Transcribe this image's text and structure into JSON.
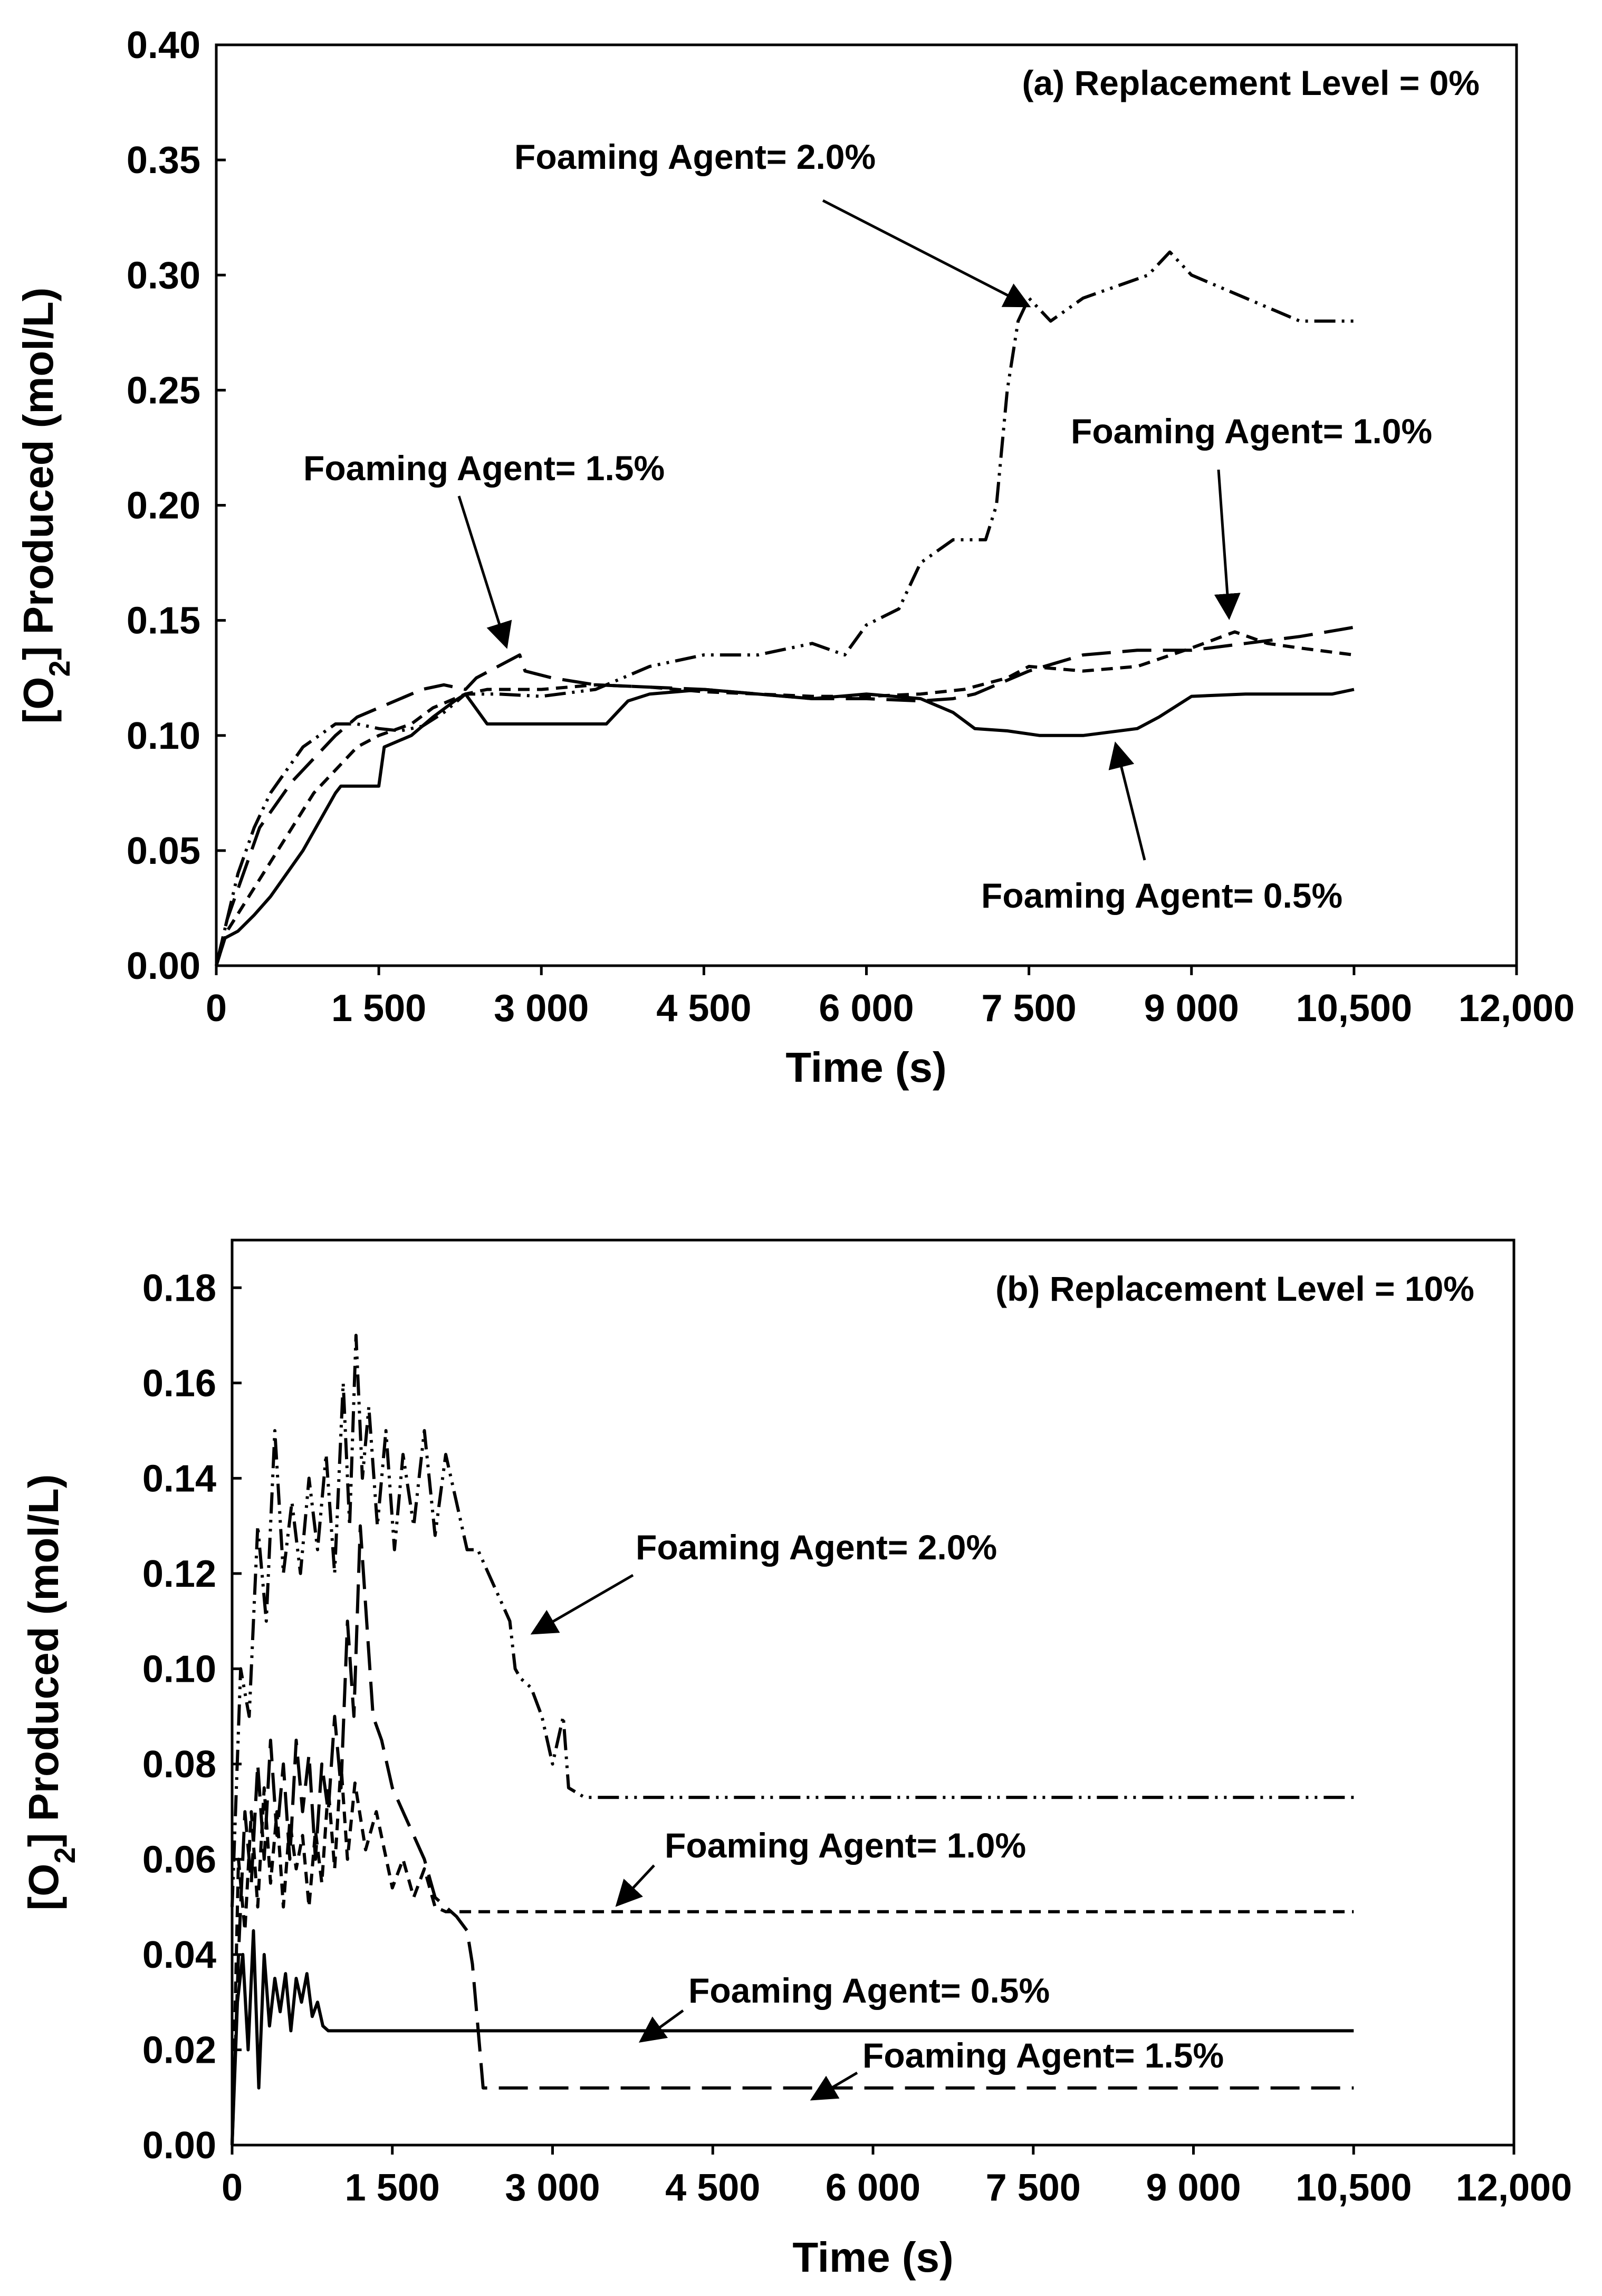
{
  "chart_data": [
    {
      "type": "line",
      "title": "(a) Replacement Level = 0%",
      "xlabel": "Time (s)",
      "ylabel_prefix": "[O",
      "ylabel_sub": "2",
      "ylabel_suffix": "] Produced (mol/L)",
      "xlim": [
        0,
        12000
      ],
      "ylim": [
        0,
        0.4
      ],
      "xticks": [
        0,
        1500,
        3000,
        4500,
        6000,
        7500,
        9000,
        10500,
        12000
      ],
      "xtick_labels": [
        "0",
        "1 500",
        "3 000",
        "4 500",
        "6 000",
        "7 500",
        "9 000",
        "10,500",
        "12,000"
      ],
      "yticks": [
        0,
        0.05,
        0.1,
        0.15,
        0.2,
        0.25,
        0.3,
        0.35,
        0.4
      ],
      "ytick_labels": [
        "0.00",
        "0.05",
        "0.10",
        "0.15",
        "0.20",
        "0.25",
        "0.30",
        "0.35",
        "0.40"
      ],
      "series": [
        {
          "name": "Foaming Agent= 0.5%",
          "dash": "solid",
          "x": [
            0,
            80,
            200,
            350,
            500,
            650,
            800,
            1100,
            1150,
            1500,
            1550,
            1800,
            2000,
            2200,
            2300,
            2500,
            3000,
            3200,
            3600,
            3700,
            3800,
            4000,
            4500,
            5000,
            5500,
            6000,
            6500,
            6800,
            7000,
            7300,
            7600,
            8000,
            8500,
            8700,
            9000,
            9500,
            10000,
            10300,
            10500
          ],
          "y": [
            0,
            0.012,
            0.015,
            0.022,
            0.03,
            0.04,
            0.05,
            0.075,
            0.078,
            0.078,
            0.095,
            0.1,
            0.108,
            0.115,
            0.118,
            0.105,
            0.105,
            0.105,
            0.105,
            0.11,
            0.115,
            0.118,
            0.12,
            0.118,
            0.116,
            0.118,
            0.116,
            0.11,
            0.103,
            0.102,
            0.1,
            0.1,
            0.103,
            0.108,
            0.117,
            0.118,
            0.118,
            0.118,
            0.12
          ]
        },
        {
          "name": "Foaming Agent= 1.0%",
          "dash": "short-dash",
          "x": [
            0,
            100,
            300,
            500,
            700,
            900,
            1100,
            1300,
            1500,
            1800,
            2000,
            2300,
            2500,
            3000,
            3500,
            4000,
            4500,
            5000,
            5500,
            6000,
            6500,
            6900,
            7300,
            7500,
            8000,
            8500,
            9000,
            9400,
            9700,
            10000,
            10500
          ],
          "y": [
            0,
            0.015,
            0.03,
            0.045,
            0.06,
            0.075,
            0.085,
            0.095,
            0.1,
            0.105,
            0.112,
            0.118,
            0.12,
            0.12,
            0.122,
            0.121,
            0.119,
            0.118,
            0.117,
            0.117,
            0.118,
            0.12,
            0.125,
            0.13,
            0.128,
            0.13,
            0.138,
            0.145,
            0.14,
            0.138,
            0.135
          ]
        },
        {
          "name": "Foaming Agent= 1.5%",
          "dash": "long-dash",
          "x": [
            0,
            100,
            250,
            400,
            550,
            700,
            900,
            1100,
            1300,
            1500,
            1700,
            1900,
            2100,
            2300,
            2400,
            2600,
            2800,
            2850,
            3100,
            3500,
            4000,
            4500,
            5000,
            5500,
            6000,
            6500,
            6800,
            7000,
            7500,
            8000,
            8500,
            9000,
            9500,
            10000,
            10500
          ],
          "y": [
            0,
            0.02,
            0.04,
            0.06,
            0.07,
            0.08,
            0.09,
            0.1,
            0.108,
            0.112,
            0.116,
            0.12,
            0.122,
            0.12,
            0.125,
            0.13,
            0.135,
            0.128,
            0.125,
            0.122,
            0.121,
            0.12,
            0.118,
            0.116,
            0.116,
            0.115,
            0.116,
            0.118,
            0.128,
            0.135,
            0.137,
            0.137,
            0.14,
            0.143,
            0.147
          ]
        },
        {
          "name": "Foaming Agent= 2.0%",
          "dash": "dash-dot-dot",
          "x": [
            0,
            100,
            200,
            350,
            500,
            650,
            800,
            950,
            1100,
            1300,
            1500,
            1700,
            1900,
            2100,
            2300,
            2600,
            3000,
            3500,
            4000,
            4500,
            5000,
            5500,
            5800,
            6000,
            6300,
            6500,
            6800,
            7100,
            7200,
            7300,
            7400,
            7500,
            7700,
            8000,
            8300,
            8600,
            8800,
            9000,
            9500,
            10000,
            10500
          ],
          "y": [
            0,
            0.02,
            0.04,
            0.06,
            0.075,
            0.085,
            0.095,
            0.1,
            0.105,
            0.105,
            0.103,
            0.102,
            0.104,
            0.11,
            0.118,
            0.118,
            0.117,
            0.12,
            0.13,
            0.135,
            0.135,
            0.14,
            0.135,
            0.148,
            0.155,
            0.175,
            0.185,
            0.185,
            0.2,
            0.25,
            0.28,
            0.29,
            0.28,
            0.29,
            0.295,
            0.3,
            0.31,
            0.3,
            0.29,
            0.28,
            0.28
          ]
        }
      ],
      "annotations": [
        "Foaming Agent= 2.0%",
        "Foaming Agent= 1.5%",
        "Foaming Agent= 1.0%",
        "Foaming Agent= 0.5%"
      ]
    },
    {
      "type": "line",
      "title": "(b) Replacement Level = 10%",
      "xlabel": "Time (s)",
      "ylabel_prefix": "[O",
      "ylabel_sub": "2",
      "ylabel_suffix": "] Produced (mol/L)",
      "xlim": [
        0,
        12000
      ],
      "ylim": [
        0,
        0.19
      ],
      "xticks": [
        0,
        1500,
        3000,
        4500,
        6000,
        7500,
        9000,
        10500,
        12000
      ],
      "xtick_labels": [
        "0",
        "1 500",
        "3 000",
        "4 500",
        "6 000",
        "7 500",
        "9 000",
        "10,500",
        "12,000"
      ],
      "yticks": [
        0,
        0.02,
        0.04,
        0.06,
        0.08,
        0.1,
        0.12,
        0.14,
        0.16,
        0.18
      ],
      "ytick_labels": [
        "0.00",
        "0.02",
        "0.04",
        "0.06",
        "0.08",
        "0.10",
        "0.12",
        "0.14",
        "0.16",
        "0.18"
      ],
      "series": [
        {
          "name": "Foaming Agent= 0.5%",
          "dash": "solid",
          "x": [
            0,
            50,
            100,
            150,
            200,
            250,
            300,
            350,
            400,
            450,
            500,
            550,
            600,
            650,
            700,
            750,
            800,
            850,
            900,
            1000,
            2000,
            4000,
            6000,
            8000,
            10500
          ],
          "y": [
            0,
            0.03,
            0.04,
            0.02,
            0.045,
            0.012,
            0.04,
            0.025,
            0.035,
            0.028,
            0.036,
            0.024,
            0.035,
            0.03,
            0.036,
            0.027,
            0.03,
            0.025,
            0.024,
            0.024,
            0.024,
            0.024,
            0.024,
            0.024,
            0.024
          ]
        },
        {
          "name": "Foaming Agent= 1.0%",
          "dash": "short-dash",
          "x": [
            0,
            60,
            120,
            180,
            240,
            300,
            360,
            420,
            480,
            540,
            600,
            660,
            720,
            780,
            840,
            900,
            960,
            1020,
            1080,
            1150,
            1250,
            1350,
            1500,
            1600,
            1700,
            1800,
            1900,
            2000,
            2200,
            2500,
            3000,
            4000,
            6000,
            8000,
            10500
          ],
          "y": [
            0,
            0.06,
            0.045,
            0.07,
            0.05,
            0.075,
            0.055,
            0.07,
            0.05,
            0.068,
            0.058,
            0.065,
            0.05,
            0.066,
            0.055,
            0.075,
            0.058,
            0.08,
            0.06,
            0.076,
            0.062,
            0.07,
            0.054,
            0.06,
            0.052,
            0.058,
            0.05,
            0.049,
            0.049,
            0.049,
            0.049,
            0.049,
            0.049,
            0.049,
            0.049
          ]
        },
        {
          "name": "Foaming Agent= 1.5%",
          "dash": "long-dash",
          "x": [
            0,
            60,
            120,
            180,
            240,
            300,
            360,
            420,
            480,
            540,
            600,
            660,
            720,
            780,
            840,
            900,
            960,
            1020,
            1080,
            1140,
            1200,
            1260,
            1320,
            1400,
            1500,
            1600,
            1700,
            1800,
            1900,
            2000,
            2100,
            2200,
            2250,
            2300,
            2350,
            2500,
            3000,
            4000,
            6000,
            8000,
            10500
          ],
          "y": [
            0,
            0.04,
            0.07,
            0.055,
            0.08,
            0.06,
            0.085,
            0.065,
            0.08,
            0.06,
            0.085,
            0.07,
            0.082,
            0.06,
            0.08,
            0.07,
            0.09,
            0.075,
            0.11,
            0.09,
            0.13,
            0.11,
            0.09,
            0.085,
            0.075,
            0.07,
            0.065,
            0.06,
            0.052,
            0.05,
            0.048,
            0.045,
            0.038,
            0.025,
            0.012,
            0.012,
            0.012,
            0.012,
            0.012,
            0.012,
            0.012
          ]
        },
        {
          "name": "Foaming Agent= 2.0%",
          "dash": "dash-dot-dot",
          "x": [
            0,
            80,
            160,
            240,
            320,
            400,
            480,
            560,
            640,
            720,
            800,
            880,
            960,
            1040,
            1100,
            1160,
            1220,
            1280,
            1360,
            1440,
            1520,
            1600,
            1700,
            1800,
            1900,
            2000,
            2100,
            2200,
            2300,
            2400,
            2500,
            2600,
            2650,
            2700,
            2800,
            2900,
            3000,
            3100,
            3150,
            3300,
            4000,
            6000,
            8000,
            10500
          ],
          "y": [
            0.05,
            0.1,
            0.09,
            0.13,
            0.11,
            0.15,
            0.12,
            0.135,
            0.12,
            0.14,
            0.125,
            0.145,
            0.12,
            0.16,
            0.13,
            0.17,
            0.14,
            0.155,
            0.13,
            0.15,
            0.125,
            0.145,
            0.13,
            0.15,
            0.128,
            0.145,
            0.135,
            0.125,
            0.125,
            0.12,
            0.115,
            0.11,
            0.1,
            0.098,
            0.096,
            0.09,
            0.08,
            0.09,
            0.075,
            0.073,
            0.073,
            0.073,
            0.073,
            0.073
          ]
        }
      ],
      "annotations": [
        "Foaming Agent= 2.0%",
        "Foaming Agent= 1.0%",
        "Foaming Agent= 0.5%",
        "Foaming Agent= 1.5%"
      ]
    }
  ]
}
